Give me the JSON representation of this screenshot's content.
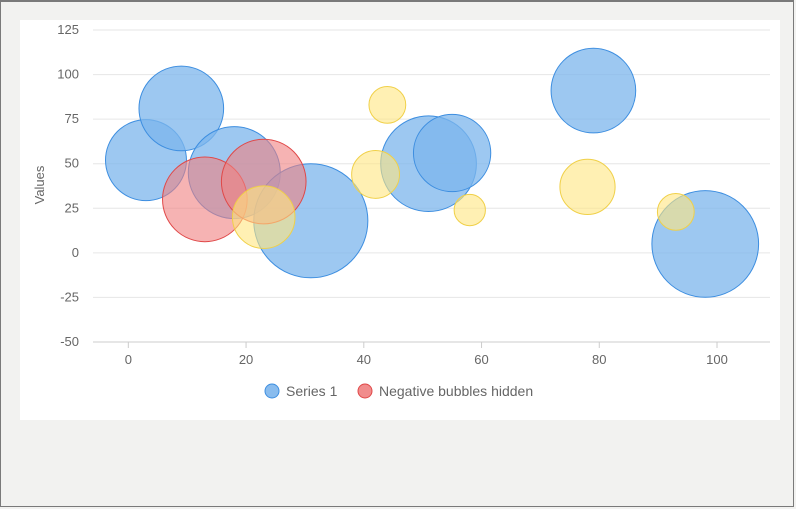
{
  "chart_data": {
    "type": "scatter",
    "subtype": "bubble",
    "title": "",
    "xlabel": "",
    "ylabel": "Values",
    "xlim": [
      -6,
      109
    ],
    "ylim": [
      -50,
      125
    ],
    "x_ticks": [
      0,
      20,
      40,
      60,
      80,
      100
    ],
    "y_ticks": [
      -50,
      -25,
      0,
      25,
      50,
      75,
      100,
      125
    ],
    "grid": true,
    "legend_position": "bottom",
    "colors": {
      "series1_fill": "#7cb5ec",
      "series1_stroke": "#3d8ee0",
      "series2_fill": "#f08080",
      "series2_stroke": "#e04848",
      "hidden_fill": "#ffe680",
      "hidden_stroke": "#f0d048",
      "grid": "#e6e6e6",
      "axis": "#cccccc"
    },
    "series": [
      {
        "name": "Series 1",
        "points": [
          {
            "x": 3,
            "y": 52,
            "z": 44
          },
          {
            "x": 9,
            "y": 81,
            "z": 46
          },
          {
            "x": 18,
            "y": 45,
            "z": 50
          },
          {
            "x": 31,
            "y": 18,
            "z": 62
          },
          {
            "x": 51,
            "y": 50,
            "z": 52
          },
          {
            "x": 55,
            "y": 56,
            "z": 42
          },
          {
            "x": 79,
            "y": 91,
            "z": 46
          },
          {
            "x": 98,
            "y": 5,
            "z": 58
          }
        ]
      },
      {
        "name": "Negative bubbles hidden",
        "points": [
          {
            "x": 13,
            "y": 30,
            "z": 46
          },
          {
            "x": 23,
            "y": 40,
            "z": 46
          }
        ]
      },
      {
        "name": "",
        "visible_in_legend": false,
        "points": [
          {
            "x": 23,
            "y": 20,
            "z": 34
          },
          {
            "x": 42,
            "y": 44,
            "z": 26
          },
          {
            "x": 44,
            "y": 83,
            "z": 20
          },
          {
            "x": 58,
            "y": 24,
            "z": 17
          },
          {
            "x": 78,
            "y": 37,
            "z": 30
          },
          {
            "x": 93,
            "y": 23,
            "z": 20
          }
        ]
      }
    ]
  }
}
